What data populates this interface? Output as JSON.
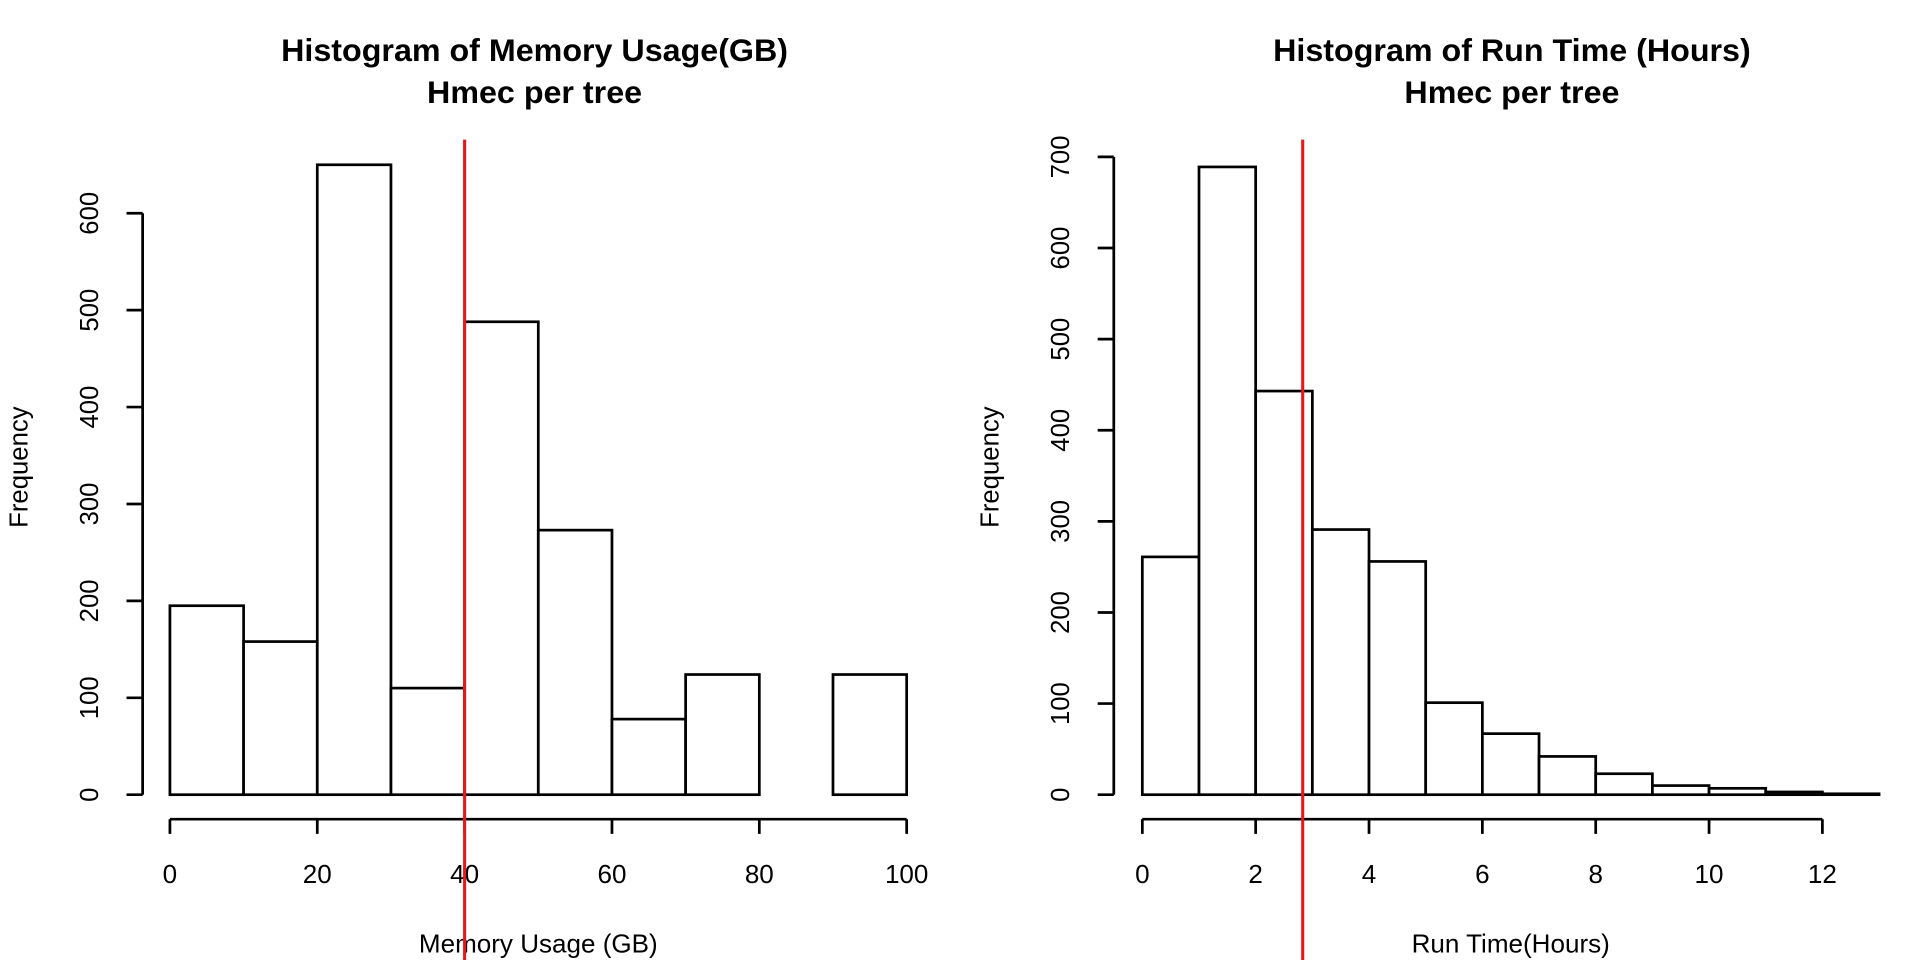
{
  "chart_data": [
    {
      "type": "histogram",
      "title": "Histogram of Memory Usage(GB)",
      "subtitle": "Hmec per tree",
      "x_label": "Memory Usage (GB)",
      "y_label": "Frequency",
      "bins": [
        0,
        10,
        20,
        30,
        40,
        50,
        60,
        70,
        80,
        90,
        100
      ],
      "values": [
        195,
        158,
        650,
        110,
        488,
        273,
        78,
        124,
        0,
        124
      ],
      "xlim": [
        0,
        100
      ],
      "xticks": [
        0,
        20,
        40,
        60,
        80,
        100
      ],
      "ylim": [
        0,
        676
      ],
      "yticks": [
        0,
        100,
        200,
        300,
        400,
        500,
        600
      ],
      "color": "#ffffff",
      "edge_color": "#000000",
      "vline": 40,
      "vline_color": "#e31a1c"
    },
    {
      "type": "histogram",
      "title": "Histogram of Run Time (Hours)",
      "subtitle": "Hmec per tree",
      "x_label": "Run Time(Hours)",
      "y_label": "Frequency",
      "bins": [
        0,
        1,
        2,
        3,
        4,
        5,
        6,
        7,
        8,
        9,
        10,
        11,
        12,
        13
      ],
      "values": [
        261,
        689,
        443,
        291,
        256,
        101,
        67,
        42,
        23,
        10,
        7,
        3,
        1
      ],
      "xlim": [
        0,
        13
      ],
      "xticks": [
        0,
        2,
        4,
        6,
        8,
        10,
        12
      ],
      "ylim": [
        0,
        719
      ],
      "yticks": [
        0,
        100,
        200,
        300,
        400,
        500,
        600,
        700
      ],
      "color": "#ffffff",
      "edge_color": "#000000",
      "vline": 2.83,
      "vline_color": "#e31a1c"
    }
  ]
}
